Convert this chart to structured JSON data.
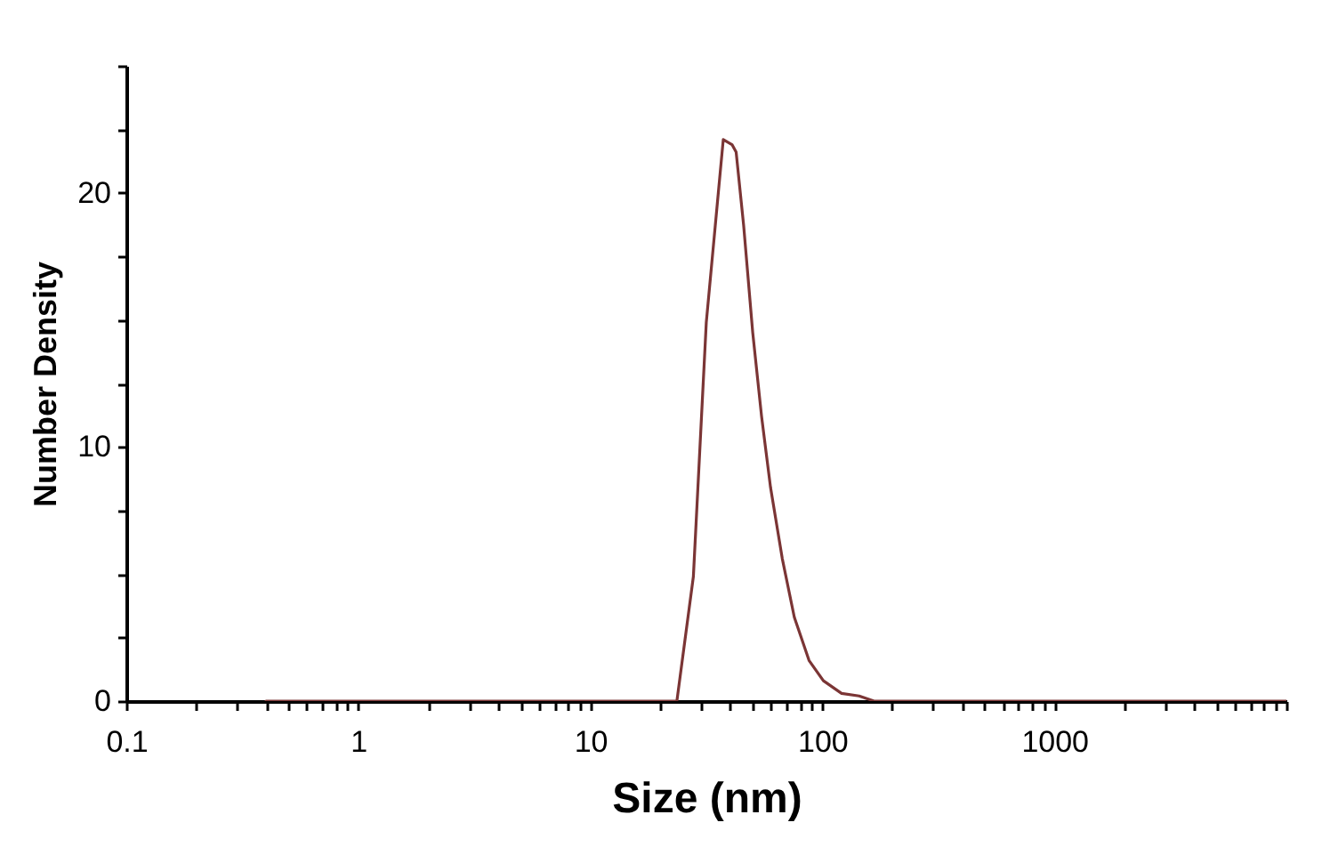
{
  "chart_data": {
    "type": "line",
    "xlabel": "Size (nm)",
    "ylabel": "Number Density",
    "log": "x",
    "color": "#7b3535",
    "x": [
      0.4,
      23.6,
      27.8,
      31.6,
      35.6,
      37.4,
      40.8,
      42.5,
      45.8,
      50.1,
      54.7,
      59.8,
      67.2,
      75.7,
      87.6,
      101,
      121,
      144,
      167,
      10000
    ],
    "values": [
      0,
      0,
      4.9,
      14.9,
      20,
      22.1,
      21.9,
      21.6,
      18.7,
      14.5,
      11.2,
      8.4,
      5.6,
      3.3,
      1.6,
      0.8,
      0.3,
      0.2,
      0,
      0
    ],
    "xlim": [
      0.1,
      10000
    ],
    "xticks": [
      0.1,
      {
        "value": 0.2,
        "label": null
      },
      {
        "value": 0.3,
        "label": null
      },
      {
        "value": 0.4,
        "label": null
      },
      {
        "value": 0.5,
        "label": null
      },
      {
        "value": 0.6,
        "label": null
      },
      {
        "value": 0.7,
        "label": null
      },
      {
        "value": 0.8,
        "label": null
      },
      {
        "value": 0.9,
        "label": null
      },
      1,
      {
        "value": 2,
        "label": null
      },
      {
        "value": 3,
        "label": null
      },
      {
        "value": 4,
        "label": null
      },
      {
        "value": 5,
        "label": null
      },
      {
        "value": 6,
        "label": null
      },
      {
        "value": 7,
        "label": null
      },
      {
        "value": 8,
        "label": null
      },
      {
        "value": 9,
        "label": null
      },
      10,
      {
        "value": 20,
        "label": null
      },
      {
        "value": 30,
        "label": null
      },
      {
        "value": 40,
        "label": null
      },
      {
        "value": 50,
        "label": null
      },
      {
        "value": 60,
        "label": null
      },
      {
        "value": 70,
        "label": null
      },
      {
        "value": 80,
        "label": null
      },
      {
        "value": 90,
        "label": null
      },
      100,
      {
        "value": 200,
        "label": null
      },
      {
        "value": 300,
        "label": null
      },
      {
        "value": 400,
        "label": null
      },
      {
        "value": 500,
        "label": null
      },
      {
        "value": 600,
        "label": null
      },
      {
        "value": 700,
        "label": null
      },
      {
        "value": 800,
        "label": null
      },
      {
        "value": 900,
        "label": null
      },
      1000,
      {
        "value": 2000,
        "label": null
      },
      {
        "value": 3000,
        "label": null
      },
      {
        "value": 4000,
        "label": null
      },
      {
        "value": 5000,
        "label": null
      },
      {
        "value": 6000,
        "label": null
      },
      {
        "value": 7000,
        "label": null
      },
      {
        "value": 8000,
        "label": null
      },
      {
        "value": 9000,
        "label": null
      },
      {
        "value": 10000,
        "label": null
      }
    ],
    "ylim": [
      0,
      25
    ],
    "yticks": [
      0,
      {
        "value": 2.5,
        "label": null
      },
      {
        "value": 5,
        "label": null
      },
      {
        "value": 7.5,
        "label": null
      },
      10,
      {
        "value": 12.5,
        "label": null
      },
      {
        "value": 15,
        "label": null
      },
      {
        "value": 17.5,
        "label": null
      },
      20,
      {
        "value": 22.5,
        "label": null
      },
      {
        "value": 25,
        "label": null
      }
    ]
  }
}
